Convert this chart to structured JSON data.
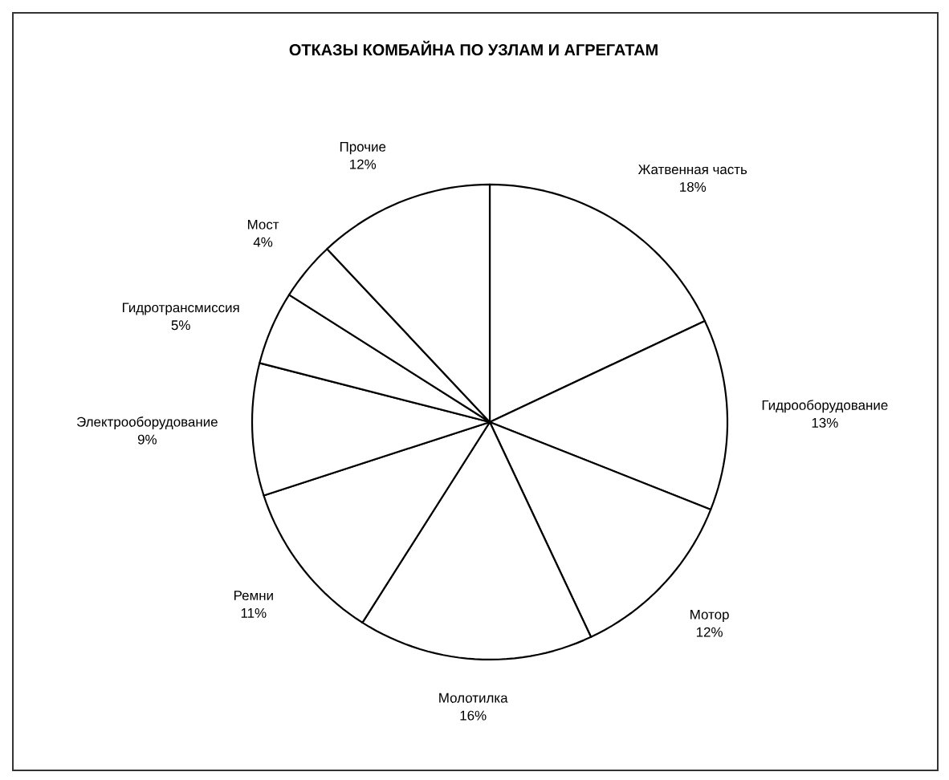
{
  "chart_data": {
    "type": "pie",
    "title": "ОТКАЗЫ КОМБАЙНА ПО УЗЛАМ И АГРЕГАТАМ",
    "categories": [
      "Жатвенная часть",
      "Гидрооборудование",
      "Мотор",
      "Молотилка",
      "Ремни",
      "Электрооборудование",
      "Гидротрансмиссия",
      "Мост",
      "Прочие"
    ],
    "values": [
      18,
      13,
      12,
      16,
      11,
      9,
      5,
      4,
      12
    ],
    "value_labels": [
      "18%",
      "13%",
      "12%",
      "16%",
      "11%",
      "9%",
      "5%",
      "4%",
      "12%"
    ],
    "colors": [
      "#ffffff",
      "#ffffff",
      "#ffffff",
      "#ffffff",
      "#ffffff",
      "#ffffff",
      "#ffffff",
      "#ffffff",
      "#ffffff"
    ]
  }
}
